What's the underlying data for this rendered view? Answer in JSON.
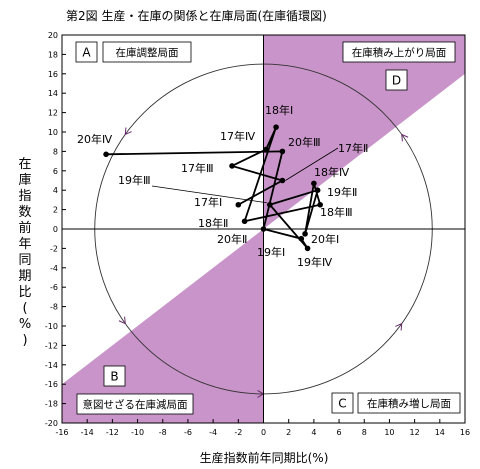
{
  "chart_data": {
    "type": "line",
    "title": "第2図 生産・在庫の関係と在庫局面(在庫循環図)",
    "xlabel": "生産指数前年同期比(%)",
    "ylabel": [
      "在",
      "庫",
      "指",
      "数",
      "前",
      "年",
      "同",
      "期",
      "比",
      "(",
      "%",
      ")"
    ],
    "xlim": [
      -16,
      16
    ],
    "ylim": [
      -20,
      20
    ],
    "xticks": [
      -16,
      -14,
      -12,
      -10,
      -8,
      -6,
      -4,
      -2,
      0,
      2,
      4,
      6,
      8,
      10,
      12,
      14,
      16
    ],
    "yticks": [
      20,
      18,
      16,
      14,
      12,
      10,
      8,
      6,
      4,
      2,
      0,
      -2,
      -4,
      -6,
      -8,
      -10,
      -12,
      -14,
      -16,
      -18,
      -20
    ],
    "grid": false,
    "colors": {
      "shade": "#c994c9",
      "line": "#000000",
      "circle": "#333333",
      "arrow": "#6a2a6a"
    },
    "quadrants": [
      {
        "letter": "A",
        "label": "在庫調整局面"
      },
      {
        "letter": "D",
        "label": "在庫積み上がり局面"
      },
      {
        "letter": "B",
        "label": "意図せざる在庫減局面"
      },
      {
        "letter": "C",
        "label": "在庫積み増し局面"
      }
    ],
    "series": [
      {
        "points": [
          {
            "label": "17年Ⅰ",
            "x": -2.0,
            "y": 2.5
          },
          {
            "label": "17年Ⅱ",
            "x": 1.5,
            "y": 5.0
          },
          {
            "label": "17年Ⅲ",
            "x": -2.5,
            "y": 6.5
          },
          {
            "label": "17年Ⅳ",
            "x": 0.2,
            "y": 8.2
          },
          {
            "label": "18年Ⅰ",
            "x": 1.0,
            "y": 10.5
          },
          {
            "label": "18年Ⅱ",
            "x": -1.5,
            "y": 0.8
          },
          {
            "label": "18年Ⅲ",
            "x": 4.5,
            "y": 2.5
          },
          {
            "label": "18年Ⅳ",
            "x": 4.0,
            "y": 4.7
          },
          {
            "label": "19年Ⅰ",
            "x": 3.3,
            "y": -0.5
          },
          {
            "label": "19年Ⅱ",
            "x": 4.3,
            "y": 4.0
          },
          {
            "label": "19年Ⅲ",
            "x": 0.5,
            "y": 2.5
          },
          {
            "label": "19年Ⅳ",
            "x": 3.5,
            "y": -2.0
          },
          {
            "label": "20年Ⅰ",
            "x": 3.0,
            "y": -1.0
          },
          {
            "label": "20年Ⅱ",
            "x": 0.0,
            "y": 0.0
          },
          {
            "label": "20年Ⅲ",
            "x": 1.5,
            "y": 8.0
          },
          {
            "label": "20年Ⅳ",
            "x": -12.5,
            "y": 7.7
          }
        ]
      }
    ]
  }
}
